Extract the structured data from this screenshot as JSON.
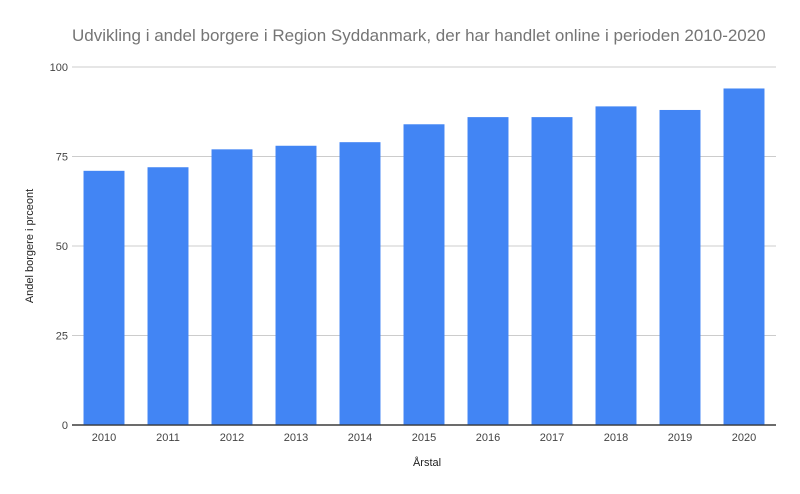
{
  "chart_data": {
    "type": "bar",
    "title": "Udvikling i andel borgere i Region Syddanmark, der har handlet online i perioden 2010-2020",
    "xlabel": "Årstal",
    "ylabel": "Andel borgere i prceont",
    "categories": [
      "2010",
      "2011",
      "2012",
      "2013",
      "2014",
      "2015",
      "2016",
      "2017",
      "2018",
      "2019",
      "2020"
    ],
    "series": [
      {
        "values": [
          71,
          72,
          77,
          78,
          79,
          84,
          86,
          86,
          89,
          88,
          94
        ],
        "color": "#4285f4"
      }
    ],
    "ylim": [
      0,
      100
    ],
    "yticks": [
      0,
      25,
      50,
      75,
      100
    ],
    "grid": true,
    "legend": "none"
  },
  "colors": {
    "bar": "#4285f4",
    "grid": "#cccccc",
    "baseline": "#333333",
    "title": "#757575"
  }
}
